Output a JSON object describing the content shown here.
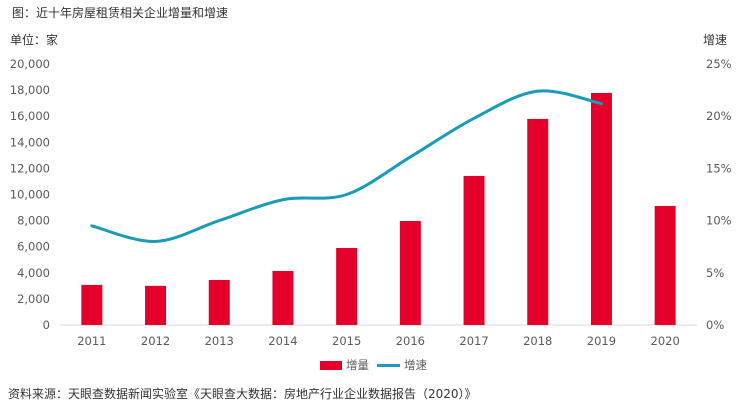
{
  "chart_data": {
    "type": "bar+line",
    "title": "图：近十年房屋租赁相关企业增量和增速",
    "ylabel": "单位：家",
    "y2label": "增速",
    "categories": [
      "2011",
      "2012",
      "2013",
      "2014",
      "2015",
      "2016",
      "2017",
      "2018",
      "2019",
      "2020"
    ],
    "ylim": [
      0,
      20000
    ],
    "yticks": [
      "0",
      "2,000",
      "4,000",
      "6,000",
      "8,000",
      "10,000",
      "12,000",
      "14,000",
      "16,000",
      "18,000",
      "20,000"
    ],
    "y2lim": [
      0,
      25
    ],
    "y2ticks": [
      "0%",
      "5%",
      "10%",
      "15%",
      "20%",
      "25%"
    ],
    "series": [
      {
        "name": "增量",
        "type": "bar",
        "color": "#e4002b",
        "values": [
          3070,
          3000,
          3450,
          4140,
          5900,
          7970,
          11420,
          15790,
          17780,
          9120
        ]
      },
      {
        "name": "增速",
        "type": "line",
        "color": "#1a9bb8",
        "values": [
          9.5,
          8.0,
          10.0,
          12.0,
          12.5,
          16.1,
          19.8,
          22.4,
          21.2,
          null
        ]
      }
    ],
    "legend_position": "bottom",
    "source": "资料来源：天眼查数据新闻实验室《天眼查大数据：房地产行业企业数据报告（2020）》"
  }
}
